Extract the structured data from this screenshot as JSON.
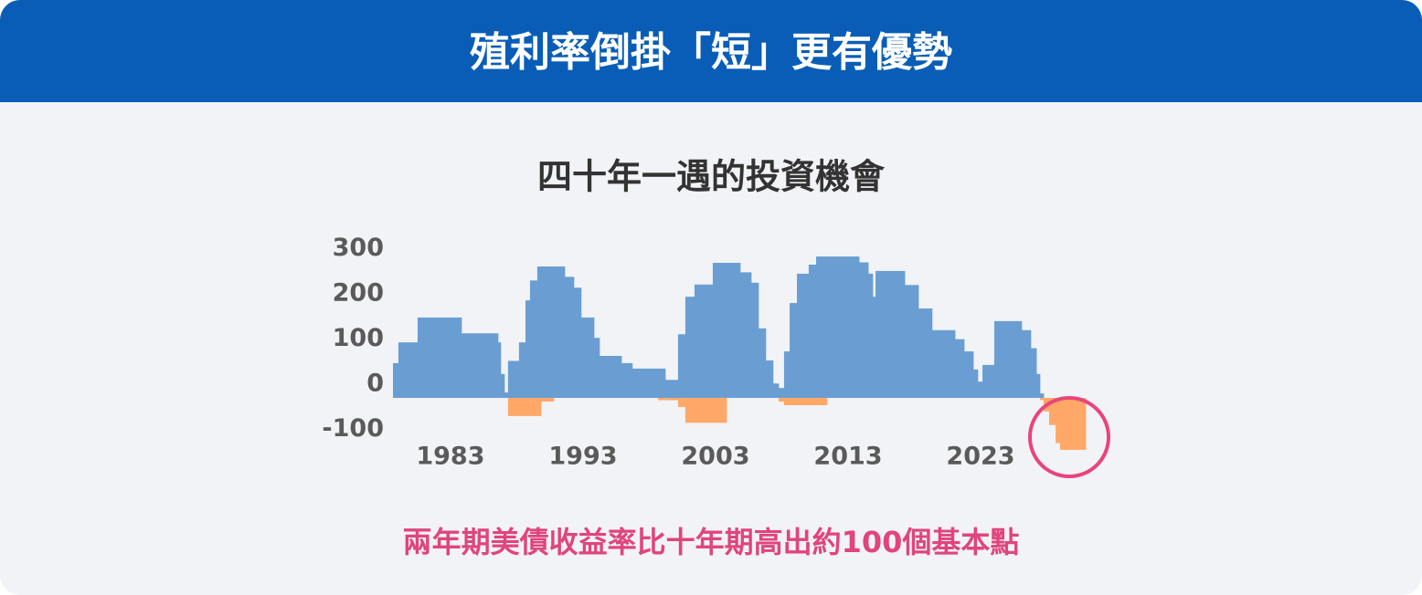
{
  "header": {
    "title": "殖利率倒掛「短」更有優勢"
  },
  "chart_data": {
    "type": "area",
    "title": "四十年一遇的投資機會",
    "annotation": "兩年期美債收益率比十年期高出約100個基本點",
    "x": [
      1978.66,
      1979.07,
      1980.52,
      1983.83,
      1986.59,
      1986.79,
      1987.07,
      1987.34,
      1988.17,
      1988.66,
      1989.0,
      1989.55,
      1989.83,
      1990.79,
      1991.62,
      1992.31,
      1992.86,
      1993.83,
      1994.24,
      1995.9,
      1996.72,
      1998.66,
      1999.21,
      2000.17,
      2000.72,
      2001.41,
      2002.79,
      2003.83,
      2004.86,
      2005.69,
      2006.24,
      2006.79,
      2007.34,
      2007.76,
      2008.17,
      2008.59,
      2009.14,
      2010.03,
      2010.59,
      2011.41,
      2013.83,
      2014.52,
      2014.86,
      2015.07,
      2017.28,
      2018.31,
      2019.34,
      2021.07,
      2021.76,
      2022.45,
      2022.79,
      2023.14,
      2024.03,
      2026.1,
      2026.79,
      2027.21,
      2027.48,
      2027.76,
      2028.17,
      2028.66,
      2029.0
    ],
    "series": [
      {
        "color": "#6a9ed3",
        "values": [
          77,
          123,
          178,
          143,
          123,
          53,
          12,
          82,
          123,
          216,
          260,
          291,
          291,
          291,
          268,
          244,
          178,
          133,
          93,
          77,
          65,
          65,
          40,
          141,
          224,
          251,
          299,
          299,
          278,
          255,
          154,
          83,
          32,
          22,
          103,
          210,
          275,
          295,
          313,
          313,
          300,
          275,
          224,
          281,
          250,
          198,
          150,
          130,
          103,
          63,
          36,
          73,
          170,
          150,
          110,
          53,
          10,
          null,
          null,
          null,
          null
        ]
      },
      {
        "color": "#ffa868",
        "values": [
          null,
          null,
          null,
          null,
          null,
          null,
          null,
          -40,
          -40,
          -40,
          -40,
          -40,
          -8,
          null,
          null,
          null,
          null,
          null,
          null,
          null,
          null,
          -5,
          -5,
          -20,
          -55,
          -55,
          -55,
          null,
          null,
          null,
          null,
          null,
          null,
          -8,
          -16,
          -16,
          -16,
          -16,
          -16,
          null,
          null,
          null,
          null,
          null,
          null,
          null,
          null,
          null,
          null,
          null,
          null,
          null,
          null,
          null,
          null,
          null,
          -5,
          -30,
          -60,
          -100,
          -115
        ]
      }
    ],
    "xlim": [
      1978.66,
      2030.93
    ],
    "ylim": [
      -130,
      335
    ],
    "xticks": [
      1983,
      1993,
      2003,
      2013,
      2023
    ],
    "yticks": [
      300,
      200,
      100,
      0,
      -100
    ]
  }
}
